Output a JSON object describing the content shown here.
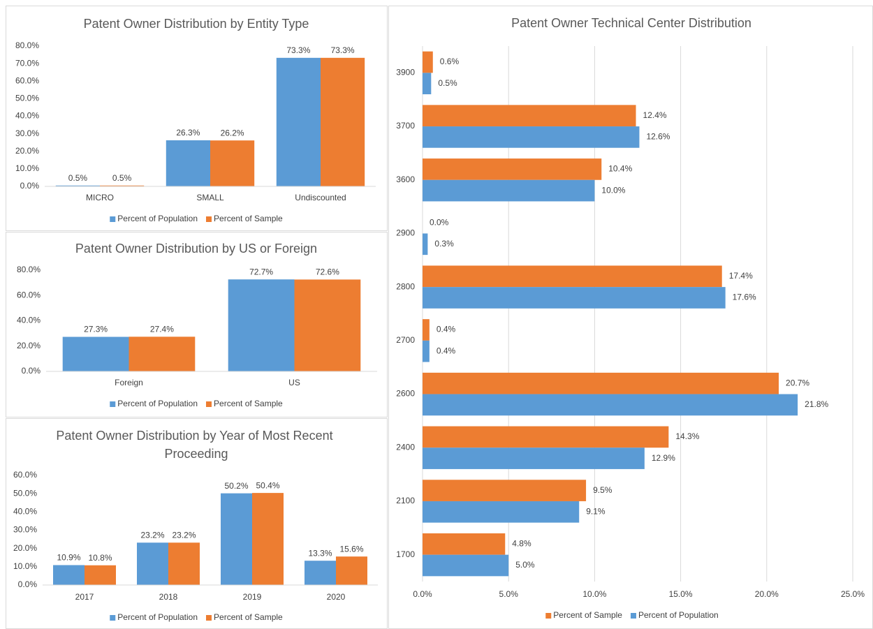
{
  "chart_data": [
    {
      "type": "bar",
      "title": "Patent Owner Distribution by Entity Type",
      "categories": [
        "MICRO",
        "SMALL",
        "Undiscounted"
      ],
      "series": [
        {
          "name": "Percent of Population",
          "color": "#5b9bd5",
          "values": [
            0.5,
            26.3,
            73.3
          ],
          "value_labels": [
            "0.5%",
            "26.3%",
            "73.3%"
          ]
        },
        {
          "name": "Percent of Sample",
          "color": "#ed7d31",
          "values": [
            0.5,
            26.2,
            73.3
          ],
          "value_labels": [
            "0.5%",
            "26.2%",
            "73.3%"
          ]
        }
      ],
      "ylim": [
        0,
        80
      ],
      "yticks": [
        {
          "value": 0,
          "label": "0.0%"
        },
        {
          "value": 10,
          "label": "10.0%"
        },
        {
          "value": 20,
          "label": "20.0%"
        },
        {
          "value": 30,
          "label": "30.0%"
        },
        {
          "value": 40,
          "label": "40.0%"
        },
        {
          "value": 50,
          "label": "50.0%"
        },
        {
          "value": 60,
          "label": "60.0%"
        },
        {
          "value": 70,
          "label": "70.0%"
        },
        {
          "value": 80,
          "label": "80.0%"
        }
      ],
      "grid": false,
      "legend": "bottom"
    },
    {
      "type": "bar",
      "title": "Patent Owner Distribution by US or Foreign",
      "categories": [
        "Foreign",
        "US"
      ],
      "series": [
        {
          "name": "Percent of Population",
          "color": "#5b9bd5",
          "values": [
            27.3,
            72.7
          ],
          "value_labels": [
            "27.3%",
            "72.7%"
          ]
        },
        {
          "name": "Percent of Sample",
          "color": "#ed7d31",
          "values": [
            27.4,
            72.6
          ],
          "value_labels": [
            "27.4%",
            "72.6%"
          ]
        }
      ],
      "ylim": [
        0,
        80
      ],
      "yticks": [
        {
          "value": 0,
          "label": "0.0%"
        },
        {
          "value": 20,
          "label": "20.0%"
        },
        {
          "value": 40,
          "label": "40.0%"
        },
        {
          "value": 60,
          "label": "60.0%"
        },
        {
          "value": 80,
          "label": "80.0%"
        }
      ],
      "grid": false,
      "legend": "bottom"
    },
    {
      "type": "bar",
      "title": "Patent Owner Distribution by Year of Most Recent Proceeding",
      "categories": [
        "2017",
        "2018",
        "2019",
        "2020"
      ],
      "series": [
        {
          "name": "Percent of Population",
          "color": "#5b9bd5",
          "values": [
            10.9,
            23.2,
            50.2,
            13.3
          ],
          "value_labels": [
            "10.9%",
            "23.2%",
            "50.2%",
            "13.3%"
          ]
        },
        {
          "name": "Percent of Sample",
          "color": "#ed7d31",
          "values": [
            10.8,
            23.2,
            50.4,
            15.6
          ],
          "value_labels": [
            "10.8%",
            "23.2%",
            "50.4%",
            "15.6%"
          ]
        }
      ],
      "ylim": [
        0,
        60
      ],
      "yticks": [
        {
          "value": 0,
          "label": "0.0%"
        },
        {
          "value": 10,
          "label": "10.0%"
        },
        {
          "value": 20,
          "label": "20.0%"
        },
        {
          "value": 30,
          "label": "30.0%"
        },
        {
          "value": 40,
          "label": "40.0%"
        },
        {
          "value": 50,
          "label": "50.0%"
        },
        {
          "value": 60,
          "label": "60.0%"
        }
      ],
      "grid": false,
      "legend": "bottom"
    },
    {
      "type": "barh",
      "title": "Patent Owner Technical Center Distribution",
      "categories": [
        "3900",
        "3700",
        "3600",
        "2900",
        "2800",
        "2700",
        "2600",
        "2400",
        "2100",
        "1700"
      ],
      "series": [
        {
          "name": "Percent of Sample",
          "color": "#ed7d31",
          "values": [
            0.6,
            12.4,
            10.4,
            0.0,
            17.4,
            0.4,
            20.7,
            14.3,
            9.5,
            4.8
          ],
          "value_labels": [
            "0.6%",
            "12.4%",
            "10.4%",
            "0.0%",
            "17.4%",
            "0.4%",
            "20.7%",
            "14.3%",
            "9.5%",
            "4.8%"
          ]
        },
        {
          "name": "Percent of Population",
          "color": "#5b9bd5",
          "values": [
            0.5,
            12.6,
            10.0,
            0.3,
            17.6,
            0.4,
            21.8,
            12.9,
            9.1,
            5.0
          ],
          "value_labels": [
            "0.5%",
            "12.6%",
            "10.0%",
            "0.3%",
            "17.6%",
            "0.4%",
            "21.8%",
            "12.9%",
            "9.1%",
            "5.0%"
          ]
        }
      ],
      "xlim": [
        0,
        25
      ],
      "xticks": [
        {
          "value": 0,
          "label": "0.0%"
        },
        {
          "value": 5,
          "label": "5.0%"
        },
        {
          "value": 10,
          "label": "10.0%"
        },
        {
          "value": 15,
          "label": "15.0%"
        },
        {
          "value": 20,
          "label": "20.0%"
        },
        {
          "value": 25,
          "label": "25.0%"
        }
      ],
      "grid": true,
      "legend": "bottom"
    }
  ]
}
